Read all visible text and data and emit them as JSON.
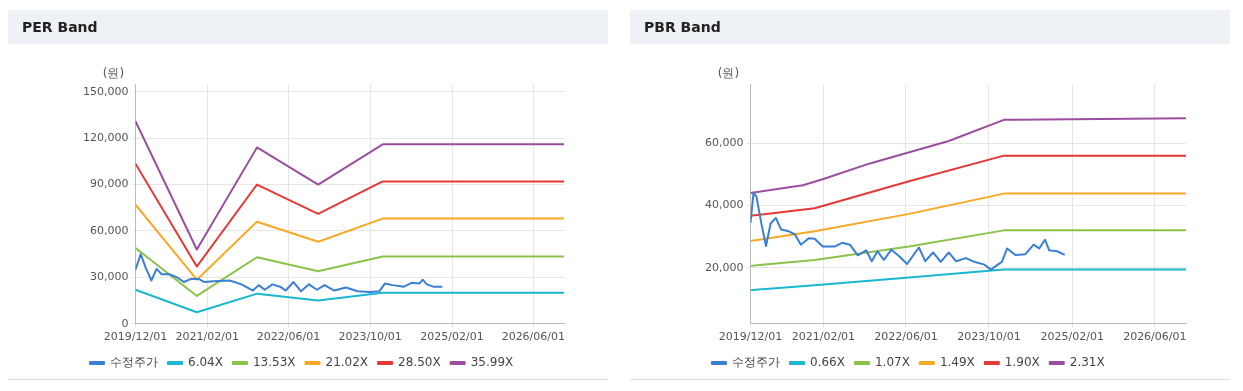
{
  "chart_data": [
    {
      "type": "line",
      "title": "PER Band",
      "ylabel": "(원)",
      "legend": "bottom",
      "grid": true,
      "marker": "none",
      "xlim": [
        "2019-12-01",
        "2026-12-01"
      ],
      "xticks": [
        {
          "value": "2019-12-01",
          "label": "2019/12/01"
        },
        {
          "value": "2021-02-01",
          "label": "2021/02/01"
        },
        {
          "value": "2022-06-01",
          "label": "2022/06/01"
        },
        {
          "value": "2023-10-01",
          "label": "2023/10/01"
        },
        {
          "value": "2025-02-01",
          "label": "2025/02/01"
        },
        {
          "value": "2026-06-01",
          "label": "2026/06/01"
        }
      ],
      "ylim": [
        0,
        155000
      ],
      "yticks": [
        {
          "value": 0,
          "label": "0"
        },
        {
          "value": 30000,
          "label": "30,000"
        },
        {
          "value": 60000,
          "label": "60,000"
        },
        {
          "value": 90000,
          "label": "90,000"
        },
        {
          "value": 120000,
          "label": "120,000"
        },
        {
          "value": 150000,
          "label": "150,000"
        }
      ],
      "series": [
        {
          "name": "수정주가",
          "color": "#3a7fd5",
          "x": [
            "2019-12-01",
            "2020-01-01",
            "2020-02-01",
            "2020-03-05",
            "2020-04-05",
            "2020-05-05",
            "2020-06-20",
            "2020-08-05",
            "2020-09-15",
            "2020-10-28",
            "2020-12-12",
            "2021-01-15",
            "2021-03-12",
            "2021-06-15",
            "2021-08-25",
            "2021-11-01",
            "2021-12-05",
            "2022-01-10",
            "2022-02-25",
            "2022-04-12",
            "2022-05-15",
            "2022-07-01",
            "2022-08-15",
            "2022-10-01",
            "2022-11-18",
            "2023-01-02",
            "2023-03-01",
            "2023-05-10",
            "2023-07-18",
            "2023-09-28",
            "2023-11-25",
            "2023-12-28",
            "2024-02-12",
            "2024-04-20",
            "2024-06-05",
            "2024-07-20",
            "2024-08-10",
            "2024-09-03",
            "2024-10-12",
            "2024-12-05"
          ],
          "values": [
            35000,
            45000,
            36000,
            28000,
            35500,
            32000,
            32000,
            30000,
            27000,
            29000,
            29000,
            27000,
            27500,
            28000,
            25500,
            21500,
            25000,
            22000,
            25500,
            24000,
            21500,
            27000,
            21000,
            25500,
            22000,
            25000,
            21500,
            23500,
            21000,
            20500,
            21000,
            26000,
            25000,
            24000,
            26500,
            26000,
            28500,
            25500,
            24000,
            24000
          ]
        },
        {
          "name": "6.04X",
          "color": "#1ab8d0",
          "x": [
            "2019-12-01",
            "2020-12-01",
            "2021-11-25",
            "2022-11-25",
            "2023-12-15",
            "2026-12-01"
          ],
          "values": [
            22000,
            7500,
            19500,
            15000,
            20000,
            20000
          ]
        },
        {
          "name": "13.53X",
          "color": "#8bc34a",
          "x": [
            "2019-12-01",
            "2020-12-01",
            "2021-11-25",
            "2022-11-25",
            "2023-12-15",
            "2026-12-01"
          ],
          "values": [
            49000,
            18000,
            43000,
            34000,
            43500,
            43500
          ]
        },
        {
          "name": "21.02X",
          "color": "#f9a825",
          "x": [
            "2019-12-01",
            "2020-12-01",
            "2021-11-25",
            "2022-11-25",
            "2023-12-15",
            "2026-12-01"
          ],
          "values": [
            77000,
            28500,
            66000,
            53000,
            68000,
            68000
          ]
        },
        {
          "name": "28.50X",
          "color": "#e53935",
          "x": [
            "2019-12-01",
            "2020-12-01",
            "2021-11-25",
            "2022-11-25",
            "2023-12-15",
            "2026-12-01"
          ],
          "values": [
            103500,
            37000,
            90000,
            71000,
            92000,
            92000
          ]
        },
        {
          "name": "35.99X",
          "color": "#9b4ea0",
          "x": [
            "2019-12-01",
            "2020-12-01",
            "2021-11-25",
            "2022-11-25",
            "2023-12-15",
            "2026-12-01"
          ],
          "values": [
            131000,
            48000,
            114000,
            90000,
            116000,
            116000
          ]
        }
      ]
    },
    {
      "type": "line",
      "title": "PBR Band",
      "ylabel": "(원)",
      "legend": "bottom",
      "grid": true,
      "marker": "none",
      "xlim": [
        "2019-12-01",
        "2026-12-01"
      ],
      "xticks": [
        {
          "value": "2019-12-01",
          "label": "2019/12/01"
        },
        {
          "value": "2021-02-01",
          "label": "2021/02/01"
        },
        {
          "value": "2022-06-01",
          "label": "2022/06/01"
        },
        {
          "value": "2023-10-01",
          "label": "2023/10/01"
        },
        {
          "value": "2025-02-01",
          "label": "2025/02/01"
        },
        {
          "value": "2026-06-01",
          "label": "2026/06/01"
        }
      ],
      "ylim": [
        2000,
        79000
      ],
      "yticks": [
        {
          "value": 20000,
          "label": "20,000"
        },
        {
          "value": 40000,
          "label": "40,000"
        },
        {
          "value": 60000,
          "label": "60,000"
        }
      ],
      "series": [
        {
          "name": "수정주가",
          "color": "#3a7fd5",
          "x": [
            "2019-12-01",
            "2019-12-19",
            "2020-01-05",
            "2020-02-05",
            "2020-03-01",
            "2020-03-28",
            "2020-04-28",
            "2020-05-28",
            "2020-07-13",
            "2020-08-18",
            "2020-09-22",
            "2020-11-07",
            "2020-12-12",
            "2021-01-28",
            "2021-04-07",
            "2021-05-22",
            "2021-07-07",
            "2021-08-22",
            "2021-10-10",
            "2021-11-12",
            "2021-12-16",
            "2022-01-22",
            "2022-03-07",
            "2022-04-22",
            "2022-06-07",
            "2022-08-16",
            "2022-09-22",
            "2022-11-07",
            "2022-12-22",
            "2023-02-07",
            "2023-03-22",
            "2023-05-19",
            "2023-07-07",
            "2023-09-04",
            "2023-10-13",
            "2023-11-22",
            "2023-12-16",
            "2024-01-16",
            "2024-03-04",
            "2024-05-01",
            "2024-06-19",
            "2024-07-22",
            "2024-08-25",
            "2024-09-19",
            "2024-11-04",
            "2024-12-19"
          ],
          "values": [
            34400,
            44100,
            42800,
            33600,
            27000,
            34200,
            36000,
            32300,
            31700,
            30700,
            27400,
            29500,
            29300,
            26800,
            26800,
            28000,
            27400,
            24000,
            25600,
            22100,
            25300,
            22500,
            25800,
            23700,
            21200,
            26500,
            22100,
            24900,
            21900,
            24900,
            22100,
            23100,
            21900,
            21000,
            19400,
            21000,
            21900,
            26200,
            24100,
            24300,
            27400,
            26200,
            29000,
            25600,
            25300,
            24100
          ]
        },
        {
          "name": "0.66X",
          "color": "#1ab8d0",
          "x": [
            "2019-12-01",
            "2020-12-12",
            "2022-06-19",
            "2023-12-28",
            "2026-12-01"
          ],
          "values": [
            12800,
            14400,
            16900,
            19400,
            19400
          ]
        },
        {
          "name": "1.07X",
          "color": "#8bc34a",
          "x": [
            "2019-12-01",
            "2020-12-12",
            "2022-06-19",
            "2023-12-28",
            "2026-12-01"
          ],
          "values": [
            20600,
            22500,
            26800,
            32000,
            32000
          ]
        },
        {
          "name": "1.49X",
          "color": "#f9a825",
          "x": [
            "2019-12-01",
            "2020-12-12",
            "2022-06-19",
            "2023-12-28",
            "2026-12-01"
          ],
          "values": [
            28600,
            31700,
            37300,
            43800,
            43800
          ]
        },
        {
          "name": "1.90X",
          "color": "#e53935",
          "x": [
            "2019-12-01",
            "2020-12-12",
            "2022-06-19",
            "2023-12-28",
            "2026-12-01"
          ],
          "values": [
            36700,
            39100,
            47800,
            56000,
            56000
          ]
        },
        {
          "name": "2.31X",
          "color": "#9b4ea0",
          "x": [
            "2019-12-01",
            "2020-10-04",
            "2021-02-01",
            "2021-11-01",
            "2023-02-07",
            "2023-12-28",
            "2026-12-01"
          ],
          "values": [
            44000,
            46500,
            48500,
            53500,
            60700,
            67500,
            68000
          ]
        }
      ]
    }
  ]
}
